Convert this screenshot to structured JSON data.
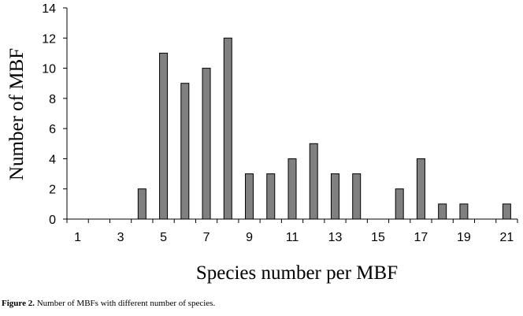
{
  "chart_data": {
    "type": "bar",
    "categories": [
      "1",
      "2",
      "3",
      "4",
      "5",
      "6",
      "7",
      "8",
      "9",
      "10",
      "11",
      "12",
      "13",
      "14",
      "15",
      "16",
      "17",
      "18",
      "19",
      "20",
      "21"
    ],
    "values": [
      0,
      0,
      0,
      2,
      11,
      9,
      10,
      12,
      3,
      3,
      4,
      5,
      3,
      3,
      0,
      2,
      4,
      1,
      1,
      0,
      1
    ],
    "xlabel": "Species number per MBF",
    "ylabel": "Number of MBF",
    "ylim": [
      0,
      14
    ],
    "yticks": [
      "0",
      "2",
      "4",
      "6",
      "8",
      "10",
      "12",
      "14"
    ],
    "xtick_labels": [
      "1",
      "3",
      "5",
      "7",
      "9",
      "11",
      "13",
      "15",
      "17",
      "19",
      "21"
    ],
    "bar_color": "#808080",
    "grid": false,
    "legend": "none"
  },
  "caption": {
    "label": "Figure 2.",
    "text": " Number of MBFs with different number of species."
  }
}
